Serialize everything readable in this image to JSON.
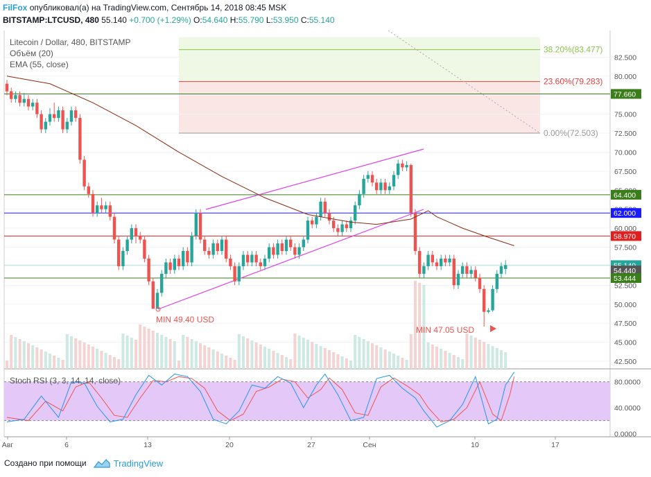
{
  "header": {
    "brand": "FilFox",
    "published": "опубликовал(а) на TradingView.com, Сентябрь 14, 2018 08:45 MSK",
    "symbol": "BITSTAMP:LTCUSD, 480",
    "price": "55.140",
    "change": "+0.700 (+1.29%)",
    "o_label": "O:",
    "o": "54.640",
    "h_label": "H:",
    "h": "55.790",
    "l_label": "L:",
    "l": "53.950",
    "c_label": "C:",
    "c": "55.140"
  },
  "legend": {
    "title": "Litecoin / Dollar, 480, BITSTAMP",
    "volume": "Объём (20)",
    "ema": "EMA (55, close)"
  },
  "footer": {
    "created": "Создано при помощи",
    "brand": "TradingView"
  },
  "colors": {
    "up": "#26a69a",
    "down": "#ef5350",
    "ema": "#8b2a10",
    "trend": "#e040e8",
    "fib_green": "#8bc34a",
    "fib_red": "#e04040",
    "level_green": "#3a7d1a",
    "level_blue": "#1a1aff",
    "level_red": "#e02020",
    "stoch_k": "#2196f3",
    "stoch_d": "#ef5350",
    "stoch_band": "#e4c8f8"
  },
  "chart_data": [
    {
      "type": "candlestick",
      "title": "Litecoin / Dollar, 480, BITSTAMP",
      "ylim": [
        41.5,
        86
      ],
      "yticks": [
        "82.500",
        "80.000",
        "77.500",
        "75.000",
        "72.500",
        "70.000",
        "67.500",
        "65.000",
        "62.500",
        "60.000",
        "57.500",
        "55.000",
        "52.500",
        "50.000",
        "47.500",
        "45.000",
        "42.500"
      ],
      "xtick_labels": [
        "Авг",
        "6",
        "13",
        "20",
        "27",
        "Сен",
        "10",
        "17"
      ],
      "ohlc": [
        [
          79,
          78,
          77.5,
          79.5
        ],
        [
          78,
          77,
          76.5,
          78.5
        ],
        [
          77,
          77.5,
          76.5,
          78
        ],
        [
          77.5,
          76.5,
          76,
          78
        ],
        [
          76.5,
          77,
          76,
          77.8
        ],
        [
          77,
          76,
          75.5,
          77.5
        ],
        [
          76,
          76.5,
          75.5,
          77
        ],
        [
          76.5,
          75,
          74.5,
          77
        ],
        [
          75,
          73,
          72.5,
          75.5
        ],
        [
          73,
          74,
          72.5,
          74.5
        ],
        [
          74,
          75,
          73.5,
          75.8
        ],
        [
          75,
          74.5,
          74,
          76.5
        ],
        [
          74.5,
          75.5,
          74,
          76
        ],
        [
          75.5,
          73,
          72.5,
          76
        ],
        [
          73,
          74,
          72.5,
          74.5
        ],
        [
          74,
          75.5,
          73.5,
          76
        ],
        [
          75.5,
          74.5,
          74,
          76
        ],
        [
          74.5,
          69,
          68.5,
          75
        ],
        [
          69,
          65.5,
          65,
          69.5
        ],
        [
          65.5,
          64.5,
          64,
          66
        ],
        [
          64.5,
          62,
          61.5,
          65
        ],
        [
          62,
          63,
          61.5,
          63.5
        ],
        [
          63,
          62.5,
          62,
          64
        ],
        [
          62.5,
          63,
          62,
          63.5
        ],
        [
          63,
          61.5,
          61,
          63.5
        ],
        [
          61.5,
          58.5,
          58,
          62
        ],
        [
          58.5,
          55,
          54.5,
          59
        ],
        [
          55,
          57,
          54.5,
          57.5
        ],
        [
          57,
          58.5,
          56.5,
          59
        ],
        [
          58.5,
          60,
          58,
          60.5
        ],
        [
          60,
          59,
          58,
          60.5
        ],
        [
          59,
          58.5,
          58,
          59.5
        ],
        [
          58.5,
          56,
          55.5,
          59
        ],
        [
          56,
          53,
          52.5,
          56.5
        ],
        [
          53,
          49.4,
          49.4,
          53.5
        ],
        [
          49.4,
          51.5,
          49.4,
          52
        ],
        [
          51.5,
          54,
          51,
          54.5
        ],
        [
          54,
          55.5,
          53.5,
          56
        ],
        [
          55.5,
          54.5,
          54,
          56
        ],
        [
          54.5,
          56,
          54,
          56.5
        ],
        [
          56,
          55,
          54.5,
          56.5
        ],
        [
          55,
          57,
          54.5,
          57.5
        ],
        [
          57,
          55.5,
          55,
          57.5
        ],
        [
          55.5,
          59,
          55,
          59.5
        ],
        [
          59,
          62,
          58.5,
          62.5
        ],
        [
          62,
          58.5,
          58,
          62.5
        ],
        [
          58.5,
          57,
          56.5,
          59
        ],
        [
          57,
          56.5,
          56,
          57.5
        ],
        [
          56.5,
          58,
          56,
          58.5
        ],
        [
          58,
          57,
          56.5,
          58.5
        ],
        [
          57,
          58.5,
          56.5,
          59
        ],
        [
          58.5,
          56,
          55.5,
          59
        ],
        [
          56,
          55,
          54.5,
          56.5
        ],
        [
          55,
          53,
          52.5,
          55.5
        ],
        [
          53,
          55,
          52.5,
          55.5
        ],
        [
          55,
          56.5,
          54.5,
          57
        ],
        [
          56.5,
          55.5,
          55,
          57
        ],
        [
          55.5,
          56.5,
          55,
          57
        ],
        [
          56.5,
          55.5,
          55,
          57
        ],
        [
          55.5,
          55,
          54.5,
          56
        ],
        [
          55,
          56,
          54.5,
          56.5
        ],
        [
          56,
          57.5,
          55.5,
          58
        ],
        [
          57.5,
          56.5,
          56,
          58
        ],
        [
          56.5,
          58,
          56,
          58.5
        ],
        [
          58,
          57,
          56.5,
          58.5
        ],
        [
          57,
          58.5,
          56.5,
          59
        ],
        [
          58.5,
          57.5,
          57,
          59
        ],
        [
          57.5,
          56.5,
          56,
          58
        ],
        [
          56.5,
          57.5,
          56,
          58
        ],
        [
          57.5,
          58.5,
          57,
          59
        ],
        [
          58.5,
          61,
          58,
          61.5
        ],
        [
          61,
          60.5,
          60,
          61.5
        ],
        [
          60.5,
          61.5,
          60,
          62
        ],
        [
          61.5,
          63.5,
          61,
          64
        ],
        [
          63.5,
          62,
          61.5,
          64
        ],
        [
          62,
          61,
          60.5,
          62.5
        ],
        [
          61,
          60,
          59.5,
          61.5
        ],
        [
          60,
          59.5,
          59,
          60.5
        ],
        [
          59.5,
          60.5,
          59,
          61
        ],
        [
          60.5,
          60,
          59.5,
          61
        ],
        [
          60,
          61,
          59.5,
          61.5
        ],
        [
          61,
          63,
          60.5,
          63.5
        ],
        [
          63,
          64.5,
          62.5,
          65
        ],
        [
          64.5,
          66.5,
          64,
          67
        ],
        [
          66.5,
          67,
          66,
          67.5
        ],
        [
          67,
          66,
          65.5,
          67.5
        ],
        [
          66,
          65,
          64.5,
          66.5
        ],
        [
          65,
          66,
          64.5,
          66.5
        ],
        [
          66,
          65,
          64.5,
          66.5
        ],
        [
          65,
          65.5,
          64.5,
          66
        ],
        [
          65.5,
          67,
          65,
          67.5
        ],
        [
          67,
          68.5,
          66.5,
          69
        ],
        [
          68.5,
          68,
          67.5,
          69
        ],
        [
          68,
          68.3,
          67.5,
          68.8
        ],
        [
          68.3,
          62,
          61.5,
          68.5
        ],
        [
          62,
          57,
          56.5,
          62.5
        ],
        [
          57,
          54,
          53.5,
          57.5
        ],
        [
          54,
          55,
          53.5,
          55.5
        ],
        [
          55,
          56.5,
          54.5,
          57
        ],
        [
          56.5,
          55.5,
          55,
          57
        ],
        [
          55.5,
          55,
          54.5,
          56
        ],
        [
          55,
          56,
          54.5,
          56.5
        ],
        [
          56,
          55.5,
          55,
          56.5
        ],
        [
          55.5,
          56,
          55,
          56.5
        ],
        [
          56,
          52.5,
          52,
          56.5
        ],
        [
          52.5,
          54,
          52,
          54.5
        ],
        [
          54,
          55,
          53.5,
          55.5
        ],
        [
          55,
          54,
          53.5,
          55.5
        ],
        [
          54,
          54.5,
          53.5,
          55
        ],
        [
          54.5,
          53.5,
          53,
          55
        ],
        [
          53.5,
          52,
          51.5,
          54
        ],
        [
          52,
          49,
          47.05,
          52.5
        ],
        [
          49,
          49.2,
          48.8,
          49.5
        ],
        [
          49.2,
          52,
          49,
          52.5
        ],
        [
          52,
          54,
          51.5,
          54.5
        ],
        [
          54,
          55,
          53.5,
          55.5
        ],
        [
          54.64,
          55.14,
          53.95,
          55.79
        ]
      ],
      "ema_55": [
        [
          0,
          80
        ],
        [
          10,
          79
        ],
        [
          20,
          76.5
        ],
        [
          30,
          73.5
        ],
        [
          40,
          70
        ],
        [
          50,
          66.8
        ],
        [
          60,
          64
        ],
        [
          70,
          61.8
        ],
        [
          80,
          60.8
        ],
        [
          86,
          60.5
        ],
        [
          94,
          61.2
        ],
        [
          98,
          62.3
        ],
        [
          100,
          61.5
        ],
        [
          106,
          60
        ],
        [
          112,
          58.8
        ],
        [
          118,
          57.7
        ]
      ],
      "levels": [
        {
          "value": 77.66,
          "label": "77.660"
        },
        {
          "value": 64.4,
          "label": "64.400"
        },
        {
          "value": 62.0,
          "label": "62.000"
        },
        {
          "value": 58.97,
          "label": "58.970"
        },
        {
          "value": 55.14,
          "label": "55.140"
        },
        {
          "value": 54.44,
          "label": "54.440"
        },
        {
          "value": 53.444,
          "label": "53.444"
        }
      ],
      "fibonacci": [
        {
          "value": 83.477,
          "label": "38.20%(83.477)"
        },
        {
          "value": 79.283,
          "label": "23.60%(79.283)"
        },
        {
          "value": 72.503,
          "label": "0.00%(72.503)"
        }
      ],
      "annotations": [
        {
          "text": "MIN 49.40 USD",
          "bar": 34,
          "value": 49.4
        },
        {
          "text": "MIN 47.05 USD",
          "bar": 111,
          "value": 47.05
        }
      ]
    },
    {
      "type": "line",
      "title": "Stoch RSI (3, 3, 14, 14, close)",
      "ylim": [
        -5,
        100
      ],
      "yticks": [
        "80.0000",
        "40.0000",
        "0.0000"
      ],
      "band": [
        20,
        80
      ],
      "k": [
        [
          0,
          18
        ],
        [
          4,
          22
        ],
        [
          8,
          58
        ],
        [
          12,
          25
        ],
        [
          15,
          80
        ],
        [
          18,
          78
        ],
        [
          21,
          42
        ],
        [
          24,
          18
        ],
        [
          27,
          22
        ],
        [
          30,
          60
        ],
        [
          33,
          90
        ],
        [
          36,
          75
        ],
        [
          39,
          92
        ],
        [
          42,
          88
        ],
        [
          45,
          65
        ],
        [
          48,
          22
        ],
        [
          51,
          15
        ],
        [
          54,
          35
        ],
        [
          57,
          75
        ],
        [
          60,
          70
        ],
        [
          63,
          88
        ],
        [
          66,
          78
        ],
        [
          69,
          40
        ],
        [
          72,
          75
        ],
        [
          74,
          92
        ],
        [
          77,
          60
        ],
        [
          80,
          20
        ],
        [
          83,
          25
        ],
        [
          86,
          85
        ],
        [
          89,
          90
        ],
        [
          92,
          70
        ],
        [
          95,
          55
        ],
        [
          97,
          35
        ],
        [
          100,
          10
        ],
        [
          103,
          20
        ],
        [
          106,
          45
        ],
        [
          109,
          88
        ],
        [
          112,
          15
        ],
        [
          114,
          22
        ],
        [
          116,
          75
        ],
        [
          118,
          95
        ]
      ],
      "d": [
        [
          0,
          25
        ],
        [
          5,
          20
        ],
        [
          9,
          50
        ],
        [
          13,
          35
        ],
        [
          16,
          72
        ],
        [
          19,
          80
        ],
        [
          22,
          55
        ],
        [
          25,
          28
        ],
        [
          28,
          25
        ],
        [
          31,
          55
        ],
        [
          34,
          82
        ],
        [
          37,
          80
        ],
        [
          40,
          88
        ],
        [
          43,
          85
        ],
        [
          46,
          70
        ],
        [
          49,
          35
        ],
        [
          52,
          20
        ],
        [
          55,
          30
        ],
        [
          58,
          65
        ],
        [
          61,
          72
        ],
        [
          64,
          84
        ],
        [
          67,
          80
        ],
        [
          70,
          55
        ],
        [
          73,
          68
        ],
        [
          75,
          86
        ],
        [
          78,
          68
        ],
        [
          81,
          32
        ],
        [
          84,
          28
        ],
        [
          87,
          72
        ],
        [
          90,
          86
        ],
        [
          93,
          74
        ],
        [
          96,
          60
        ],
        [
          98,
          40
        ],
        [
          101,
          18
        ],
        [
          104,
          22
        ],
        [
          107,
          40
        ],
        [
          110,
          80
        ],
        [
          113,
          30
        ],
        [
          115,
          20
        ],
        [
          117,
          60
        ],
        [
          118,
          88
        ]
      ]
    }
  ]
}
